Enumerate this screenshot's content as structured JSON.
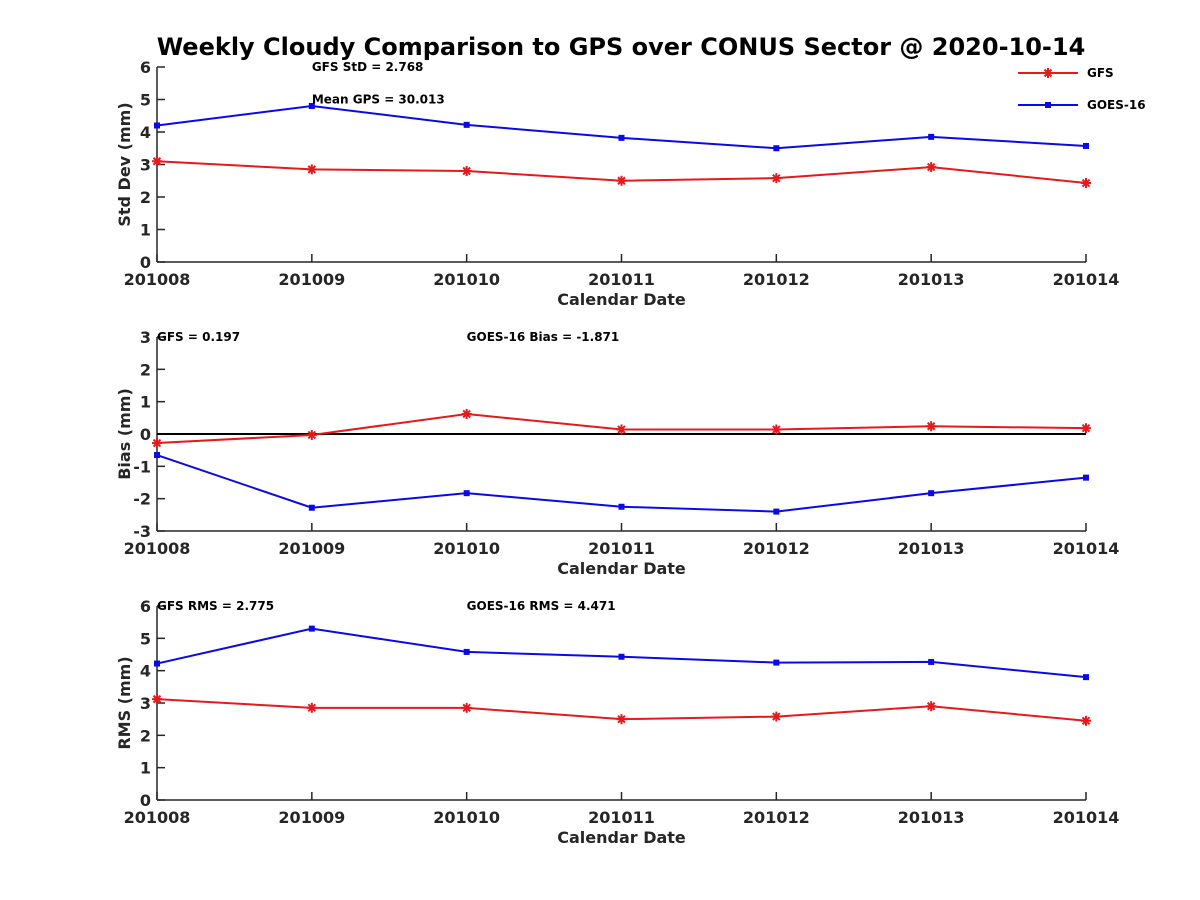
{
  "title": "Weekly Cloudy Comparison to GPS over CONUS Sector @ 2020-10-14",
  "colors": {
    "GFS": "#e41a1c",
    "GOES-16": "#0a0ae6",
    "zero_line": "#000000",
    "axis": "#262626"
  },
  "legend": {
    "placement": "top-right",
    "entries": [
      {
        "label": "GFS",
        "marker": "asterisk",
        "color": "#e41a1c"
      },
      {
        "label": "GOES-16",
        "marker": "square",
        "color": "#0a0ae6"
      }
    ]
  },
  "chart_data": [
    {
      "type": "line",
      "categories": [
        "201008",
        "201009",
        "201010",
        "201011",
        "201012",
        "201013",
        "201014"
      ],
      "xlabel": "Calendar Date",
      "ylabel": "Std Dev (mm)",
      "ylim": [
        0,
        6
      ],
      "yticks": [
        "0",
        "1",
        "2",
        "3",
        "4",
        "5",
        "6"
      ],
      "zero_line": false,
      "series": [
        {
          "name": "GFS",
          "values": [
            3.1,
            2.85,
            2.8,
            2.5,
            2.58,
            2.92,
            2.43
          ]
        },
        {
          "name": "GOES-16",
          "values": [
            4.2,
            4.8,
            4.22,
            3.82,
            3.5,
            3.85,
            3.57
          ]
        }
      ],
      "annotations": [
        {
          "text": "GFS StD = 2.768",
          "anchor": "201009",
          "level": 6
        },
        {
          "text": "Mean GPS = 30.013",
          "anchor": "201009",
          "level": 5
        }
      ]
    },
    {
      "type": "line",
      "categories": [
        "201008",
        "201009",
        "201010",
        "201011",
        "201012",
        "201013",
        "201014"
      ],
      "xlabel": "Calendar Date",
      "ylabel": "Bias (mm)",
      "ylim": [
        -3,
        3
      ],
      "yticks": [
        "-3",
        "-2",
        "-1",
        "0",
        "1",
        "2",
        "3"
      ],
      "zero_line": true,
      "series": [
        {
          "name": "GFS",
          "values": [
            -0.28,
            -0.03,
            0.62,
            0.14,
            0.14,
            0.24,
            0.18
          ]
        },
        {
          "name": "GOES-16",
          "values": [
            -0.65,
            -2.28,
            -1.83,
            -2.25,
            -2.4,
            -1.83,
            -1.35
          ]
        }
      ],
      "annotations": [
        {
          "text": "GFS = 0.197",
          "anchor": "201008",
          "level": 3
        },
        {
          "text": "GOES-16 Bias  = -1.871",
          "anchor": "201010",
          "level": 3
        }
      ]
    },
    {
      "type": "line",
      "categories": [
        "201008",
        "201009",
        "201010",
        "201011",
        "201012",
        "201013",
        "201014"
      ],
      "xlabel": "Calendar Date",
      "ylabel": "RMS (mm)",
      "ylim": [
        0,
        6
      ],
      "yticks": [
        "0",
        "1",
        "2",
        "3",
        "4",
        "5",
        "6"
      ],
      "zero_line": false,
      "series": [
        {
          "name": "GFS",
          "values": [
            3.12,
            2.85,
            2.85,
            2.5,
            2.58,
            2.9,
            2.45
          ]
        },
        {
          "name": "GOES-16",
          "values": [
            4.22,
            5.3,
            4.58,
            4.43,
            4.25,
            4.27,
            3.8
          ]
        }
      ],
      "annotations": [
        {
          "text": "GFS RMS = 2.775",
          "anchor": "201008",
          "level": 6
        },
        {
          "text": "GOES-16 RMS = 4.471",
          "anchor": "201010",
          "level": 6
        }
      ]
    }
  ]
}
